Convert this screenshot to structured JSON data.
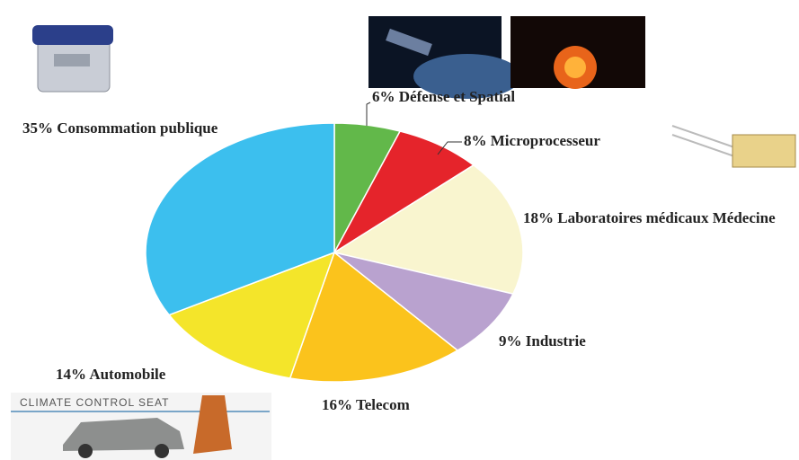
{
  "chart_data": {
    "type": "pie",
    "categories": [
      "Défense et Spatial",
      "Microprocesseur",
      "Laboratoires médicaux Médecine",
      "Industrie",
      "Telecom",
      "Automobile",
      "Consommation publique"
    ],
    "values": [
      6,
      8,
      18,
      9,
      16,
      14,
      35
    ],
    "value_labels": [
      "6%",
      "8%",
      "18%",
      "9%",
      "16%",
      "14%",
      "35%"
    ],
    "colors": [
      "#62b84a",
      "#e5242b",
      "#f9f5cf",
      "#b9a2cf",
      "#fbc31c",
      "#f4e52a",
      "#3cbfee"
    ],
    "annotation": "CLIMATE CONTROL SEAT"
  }
}
